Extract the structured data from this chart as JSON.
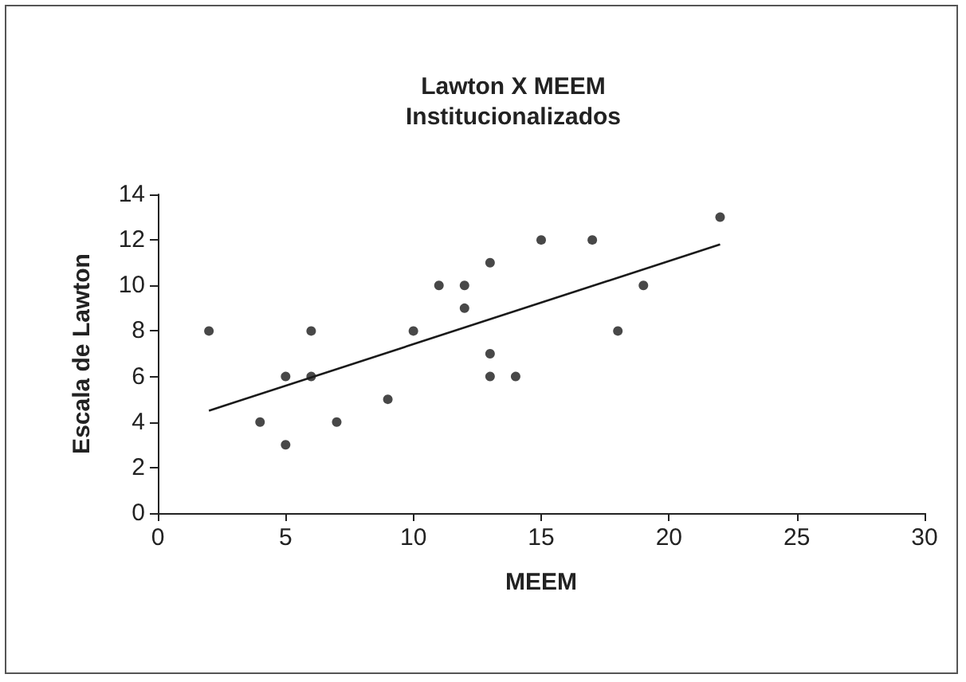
{
  "chart_data": {
    "type": "scatter",
    "title": "Lawton X MEEM\nInstitucionalizados",
    "xlabel": "MEEM",
    "ylabel": "Escala de Lawton",
    "xlim": [
      0,
      30
    ],
    "xticks": [
      0,
      5,
      10,
      15,
      20,
      25,
      30
    ],
    "ylim": [
      0,
      14
    ],
    "yticks": [
      0,
      2,
      4,
      6,
      8,
      10,
      12,
      14
    ],
    "marker": "circle",
    "series": [
      {
        "color": "#1a1a1a",
        "x": [
          2,
          4,
          5,
          5,
          6,
          6,
          7,
          9,
          10,
          11,
          12,
          12,
          13,
          13,
          13,
          14,
          15,
          17,
          18,
          19,
          22
        ],
        "values": [
          8,
          4,
          6,
          3,
          8,
          6,
          4,
          5,
          8,
          10,
          10,
          9,
          11,
          7,
          6,
          6,
          12,
          12,
          8,
          10,
          13
        ]
      },
      {
        "type": "line",
        "marker": "none",
        "color": "#1a1a1a",
        "x": [
          2,
          22
        ],
        "values": [
          4.5,
          11.8
        ]
      }
    ]
  }
}
